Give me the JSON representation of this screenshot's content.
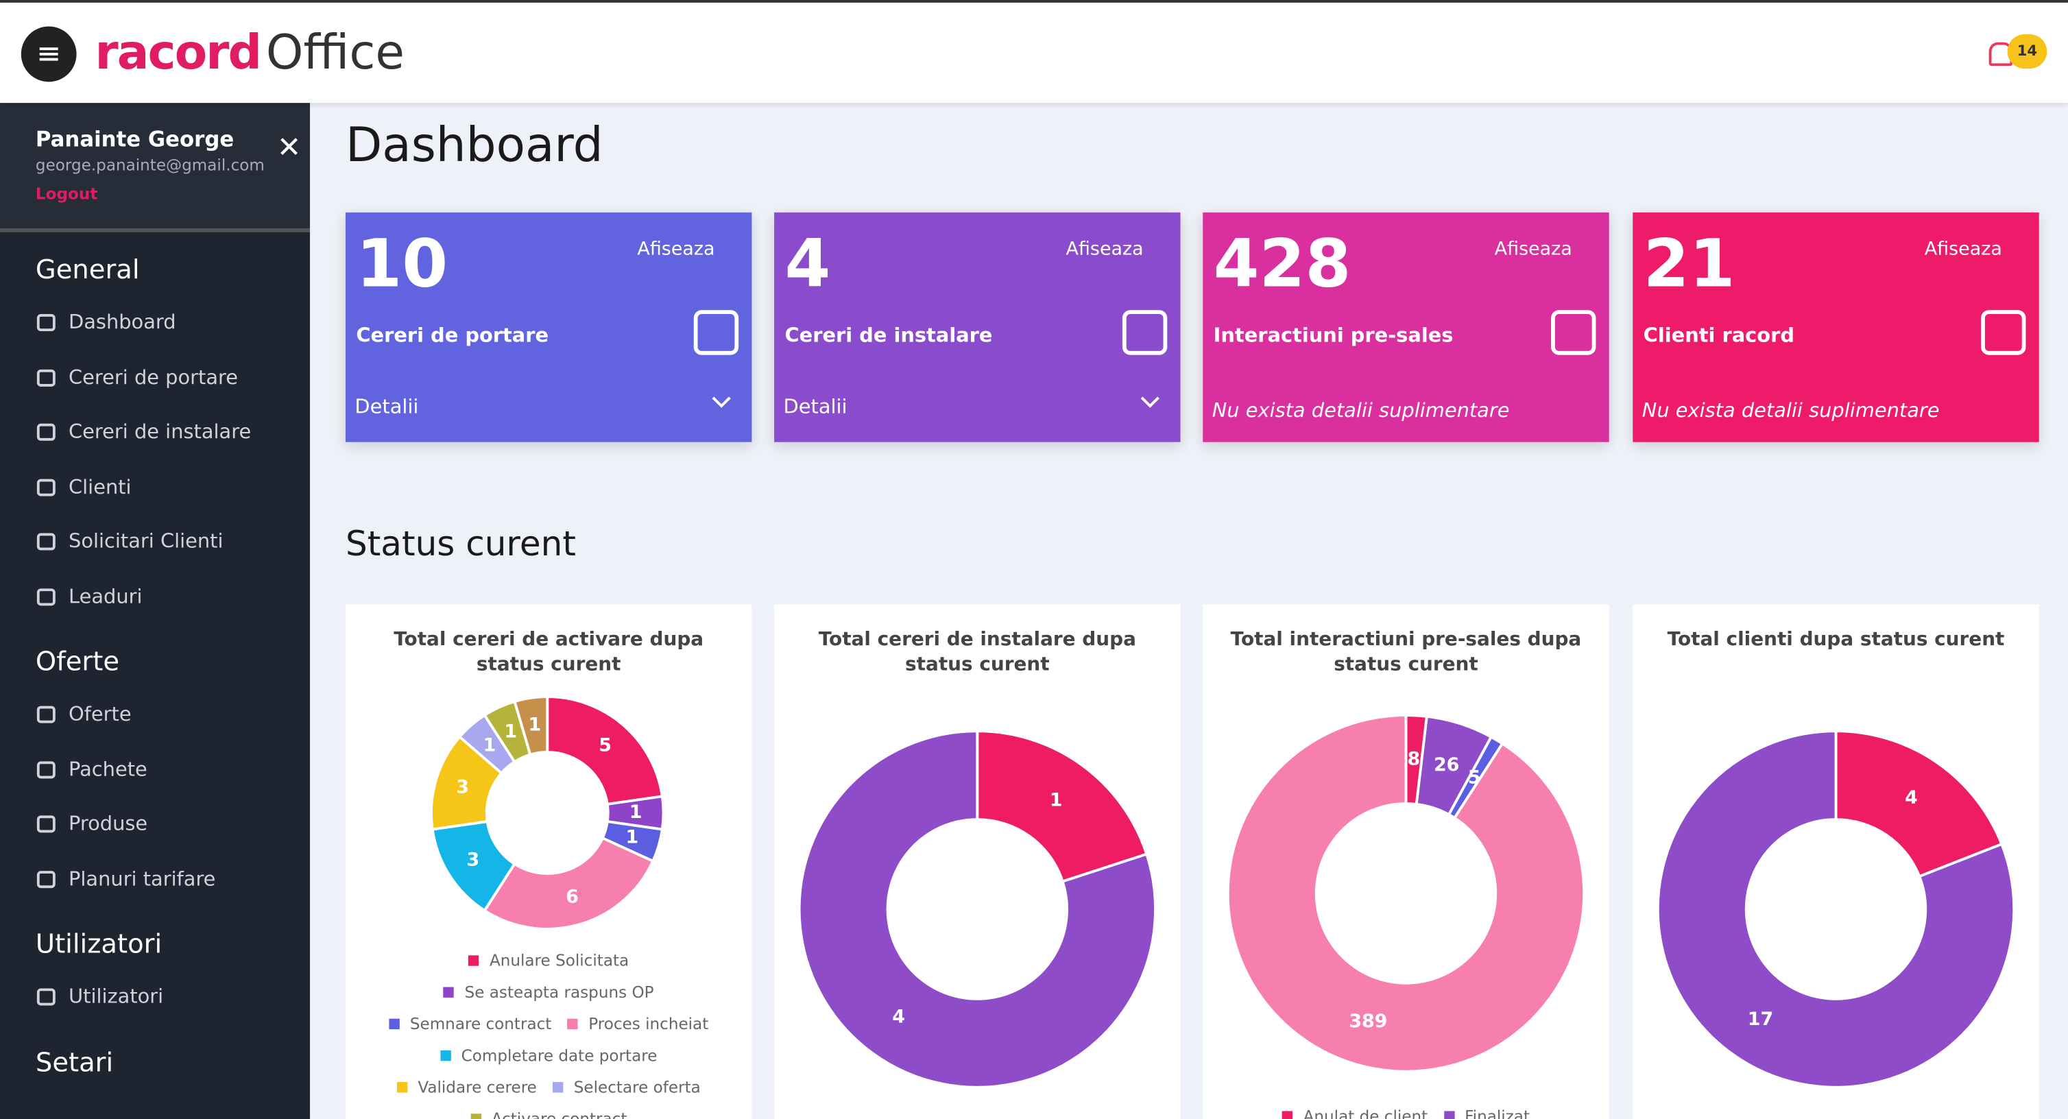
{
  "header": {
    "brand": "racord",
    "product": "Office",
    "notification_count": 14
  },
  "user": {
    "name": "Panainte George",
    "email": "george.panainte@gmail.com",
    "logout": "Logout"
  },
  "sidebar": [
    {
      "title": "General",
      "items": [
        "Dashboard",
        "Cereri de portare",
        "Cereri de instalare",
        "Clienti",
        "Solicitari Clienti",
        "Leaduri"
      ]
    },
    {
      "title": "Oferte",
      "items": [
        "Oferte",
        "Pachete",
        "Produse",
        "Planuri tarifare"
      ]
    },
    {
      "title": "Utilizatori",
      "items": [
        "Utilizatori"
      ]
    },
    {
      "title": "Setari",
      "items": []
    }
  ],
  "page_title": "Dashboard",
  "cards": [
    {
      "value": 10,
      "label": "Cereri de portare",
      "action": "Afiseaza",
      "footer": "Detalii",
      "color": "#6264df"
    },
    {
      "value": 4,
      "label": "Cereri de instalare",
      "action": "Afiseaza",
      "footer": "Detalii",
      "color": "#8a4ccc"
    },
    {
      "value": 428,
      "label": "Interactiuni pre-sales",
      "action": "Afiseaza",
      "footer": "Nu exista detalii suplimentare",
      "color": "#d92f9f"
    },
    {
      "value": 21,
      "label": "Clienti racord",
      "action": "Afiseaza",
      "footer": "Nu exista detalii suplimentare",
      "color": "#ee1b6b"
    }
  ],
  "section_title": "Status curent",
  "charts": [
    {
      "type": "donut",
      "title": "Total cereri de activare dupa status curent",
      "categories": [
        "Anulare Solicitata",
        "Se asteapta raspuns OP",
        "Semnare contract",
        "Proces incheiat",
        "Completare date portare",
        "Validare cerere",
        "Selectare oferta",
        "Activare contract",
        null
      ],
      "values": [
        5,
        1,
        1,
        6,
        3,
        3,
        1,
        1,
        1
      ],
      "colors": [
        "#ee1c64",
        "#8e44c8",
        "#5b5ee0",
        "#f77fad",
        "#14b6e8",
        "#f5c518",
        "#a8a8ee",
        "#b5b33a",
        "#c4904a"
      ]
    },
    {
      "type": "donut",
      "title": "Total cereri de instalare dupa status curent",
      "categories": [
        null,
        null
      ],
      "values": [
        1,
        4
      ],
      "colors": [
        "#ee1c64",
        "#8e4cc8"
      ]
    },
    {
      "type": "donut",
      "title": "Total interactiuni pre-sales dupa status curent",
      "categories": [
        "Anulat de client",
        "Finalizat",
        null,
        null
      ],
      "values": [
        8,
        26,
        5,
        389
      ],
      "colors": [
        "#ee1c64",
        "#8e4cc8",
        "#5b5ee0",
        "#f77fad"
      ]
    },
    {
      "type": "donut",
      "title": "Total clienti dupa status curent",
      "categories": [
        null,
        null
      ],
      "values": [
        4,
        17
      ],
      "colors": [
        "#ee1c64",
        "#8e4cc8"
      ]
    }
  ]
}
